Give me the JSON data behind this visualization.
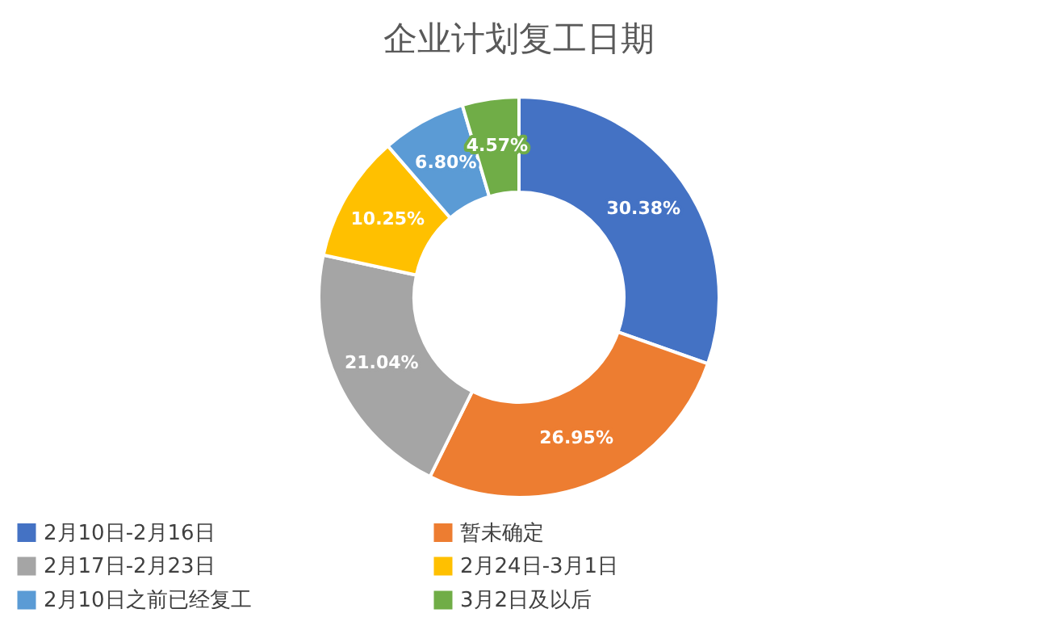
{
  "chart_data": {
    "type": "donut",
    "title": "企业计划复工日期",
    "categories": [
      "2月10日-2月16日",
      "暂未确定",
      "2月17日-2月23日",
      "2月24日-3月1日",
      "2月10日之前已经复工",
      "3月2日及以后"
    ],
    "values": [
      30.38,
      26.95,
      21.04,
      10.25,
      6.8,
      4.57
    ],
    "value_labels": [
      "30.38%",
      "26.95%",
      "21.04%",
      "10.25%",
      "6.80%",
      "4.57%"
    ],
    "colors": [
      "#4472c4",
      "#ed7d31",
      "#a5a5a5",
      "#ffc000",
      "#5b9bd5",
      "#70ad47"
    ],
    "legend": "bottom"
  }
}
